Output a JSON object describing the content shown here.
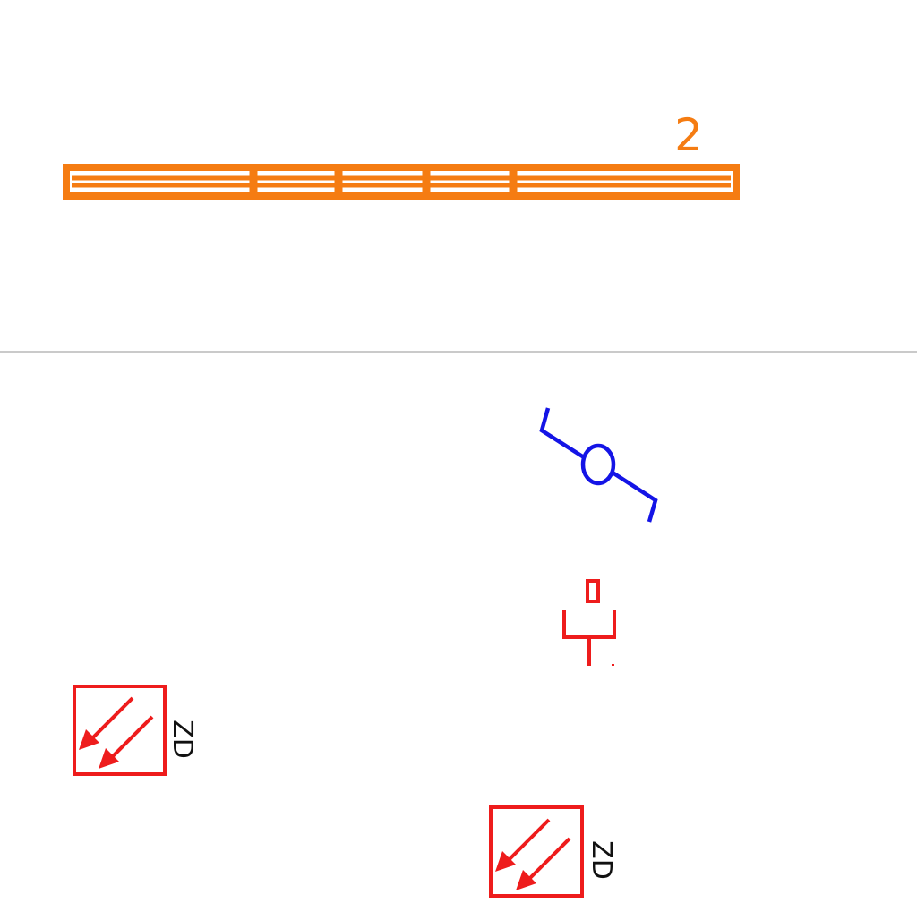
{
  "colors": {
    "background": "#ffffff",
    "rail": "#f57c12",
    "divider": "#b8b8b8",
    "valve": "#1414e6",
    "symbol_red": "#ee1c1c",
    "text_black": "#111111"
  },
  "rail": {
    "number_label": "2",
    "segments": 5
  },
  "valve_symbol": {
    "icon": "valve-icon"
  },
  "small_symbol": {
    "icon": "socket-icon"
  },
  "zd_symbols": [
    {
      "label": "ZD",
      "icon": "double-arrow-icon"
    },
    {
      "label": "ZD",
      "icon": "double-arrow-icon"
    }
  ]
}
